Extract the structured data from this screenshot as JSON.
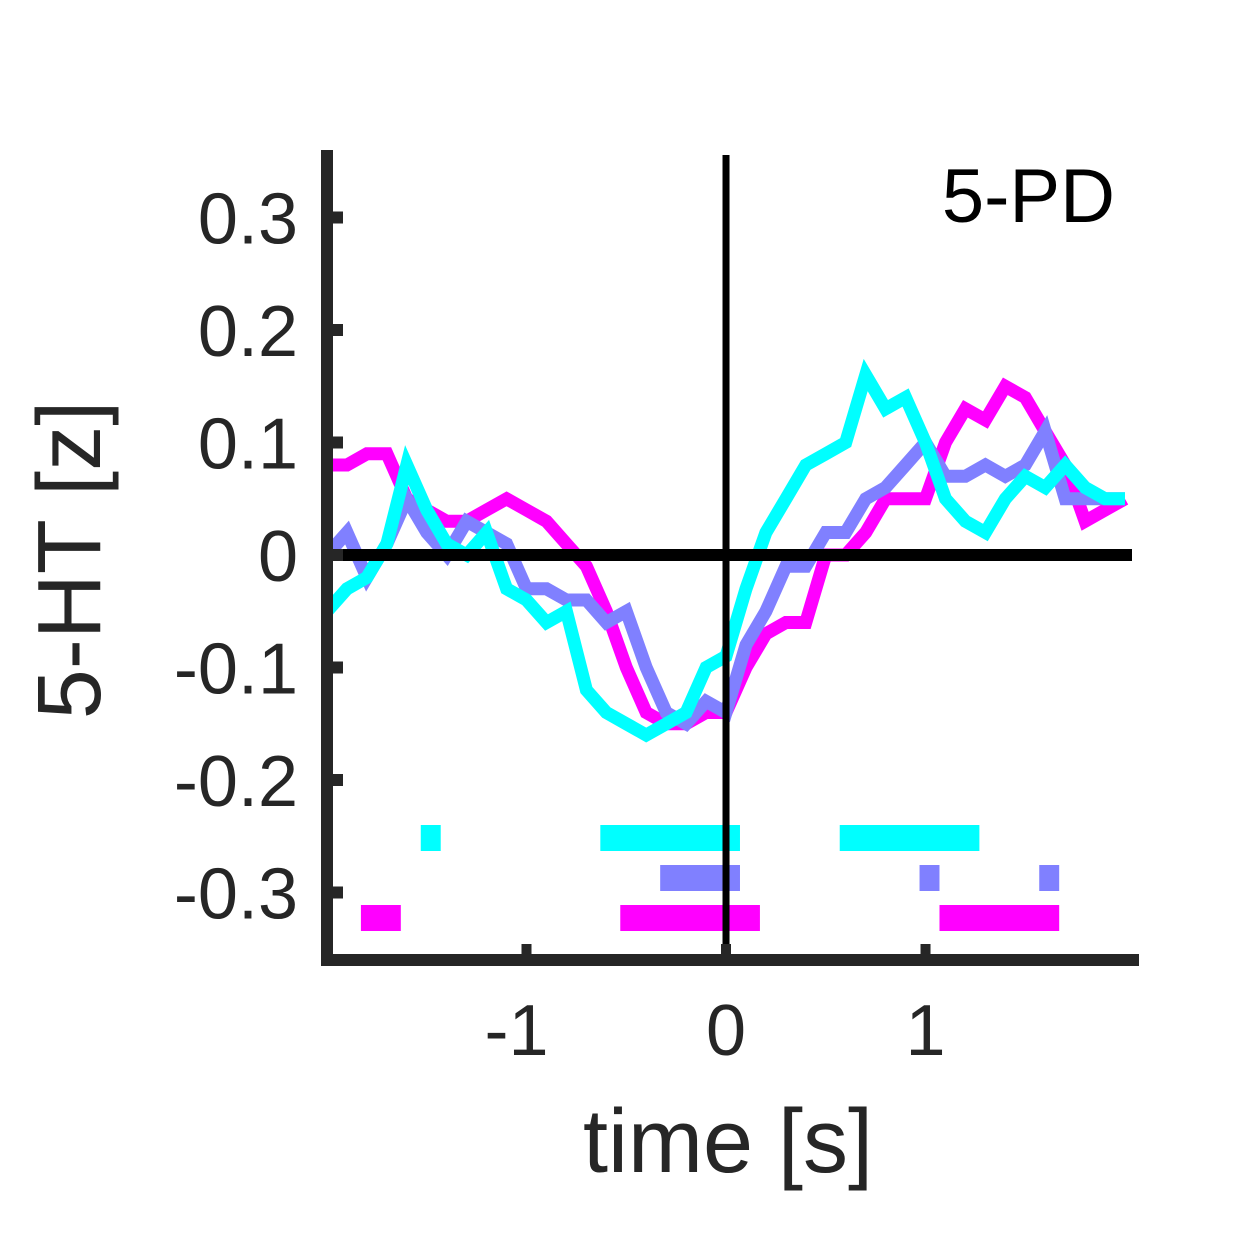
{
  "chart_data": {
    "type": "line",
    "title": "5-PD",
    "xlabel": "time [s]",
    "ylabel": "5-HT [z]",
    "xlim": [
      -2,
      2.05
    ],
    "ylim": [
      -0.36,
      0.36
    ],
    "xticks": [
      -1,
      0,
      1
    ],
    "xtick_labels": [
      "-1",
      "0",
      "1"
    ],
    "yticks": [
      0.3,
      0.2,
      0.1,
      0,
      -0.1,
      -0.2,
      -0.3
    ],
    "ytick_labels": [
      "0.3",
      "0.2",
      "0.1",
      "0",
      "-0.1",
      "-0.2",
      "-0.3"
    ],
    "grid": false,
    "reference_lines": {
      "x": 0,
      "y": 0
    },
    "series": [
      {
        "color": "#ff00ff",
        "x": [
          -2.0,
          -1.9,
          -1.8,
          -1.7,
          -1.6,
          -1.5,
          -1.4,
          -1.3,
          -1.2,
          -1.1,
          -1.0,
          -0.9,
          -0.8,
          -0.7,
          -0.6,
          -0.5,
          -0.4,
          -0.3,
          -0.2,
          -0.1,
          0.0,
          0.1,
          0.2,
          0.3,
          0.4,
          0.5,
          0.6,
          0.7,
          0.8,
          0.9,
          1.0,
          1.1,
          1.2,
          1.3,
          1.4,
          1.5,
          1.6,
          1.7,
          1.8,
          1.9,
          2.0
        ],
        "y": [
          0.08,
          0.08,
          0.09,
          0.09,
          0.05,
          0.04,
          0.03,
          0.03,
          0.04,
          0.05,
          0.04,
          0.03,
          0.01,
          -0.01,
          -0.05,
          -0.1,
          -0.14,
          -0.15,
          -0.15,
          -0.14,
          -0.14,
          -0.1,
          -0.07,
          -0.06,
          -0.06,
          0.0,
          0.0,
          0.02,
          0.05,
          0.05,
          0.05,
          0.1,
          0.13,
          0.12,
          0.15,
          0.14,
          0.11,
          0.08,
          0.03,
          0.04,
          0.05
        ]
      },
      {
        "color": "#8080ff",
        "x": [
          -2.0,
          -1.9,
          -1.8,
          -1.7,
          -1.6,
          -1.5,
          -1.4,
          -1.3,
          -1.2,
          -1.1,
          -1.0,
          -0.9,
          -0.8,
          -0.7,
          -0.6,
          -0.5,
          -0.4,
          -0.3,
          -0.2,
          -0.1,
          0.0,
          0.1,
          0.2,
          0.3,
          0.4,
          0.5,
          0.6,
          0.7,
          0.8,
          0.9,
          1.0,
          1.1,
          1.2,
          1.3,
          1.4,
          1.5,
          1.6,
          1.7,
          1.8,
          1.9,
          2.0
        ],
        "y": [
          0.0,
          0.02,
          -0.02,
          0.01,
          0.05,
          0.02,
          0.0,
          0.03,
          0.02,
          0.01,
          -0.03,
          -0.03,
          -0.04,
          -0.04,
          -0.06,
          -0.05,
          -0.1,
          -0.14,
          -0.15,
          -0.13,
          -0.14,
          -0.08,
          -0.05,
          -0.01,
          -0.01,
          0.02,
          0.02,
          0.05,
          0.06,
          0.08,
          0.1,
          0.07,
          0.07,
          0.08,
          0.07,
          0.08,
          0.11,
          0.05,
          0.05,
          0.05,
          0.05
        ]
      },
      {
        "color": "#00ffff",
        "x": [
          -2.0,
          -1.9,
          -1.8,
          -1.7,
          -1.6,
          -1.5,
          -1.4,
          -1.3,
          -1.2,
          -1.1,
          -1.0,
          -0.9,
          -0.8,
          -0.7,
          -0.6,
          -0.5,
          -0.4,
          -0.3,
          -0.2,
          -0.1,
          0.0,
          0.1,
          0.2,
          0.3,
          0.4,
          0.5,
          0.6,
          0.7,
          0.8,
          0.9,
          1.0,
          1.1,
          1.2,
          1.3,
          1.4,
          1.5,
          1.6,
          1.7,
          1.8,
          1.9,
          2.0
        ],
        "y": [
          -0.05,
          -0.03,
          -0.02,
          0.01,
          0.08,
          0.04,
          0.01,
          0.0,
          0.02,
          -0.03,
          -0.04,
          -0.06,
          -0.05,
          -0.12,
          -0.14,
          -0.15,
          -0.16,
          -0.15,
          -0.14,
          -0.1,
          -0.09,
          -0.03,
          0.02,
          0.05,
          0.08,
          0.09,
          0.1,
          0.16,
          0.13,
          0.14,
          0.1,
          0.05,
          0.03,
          0.02,
          0.05,
          0.07,
          0.06,
          0.08,
          0.06,
          0.05,
          0.05
        ]
      }
    ],
    "significance_bars": [
      {
        "color": "#00ffff",
        "segments": [
          [
            -1.53,
            -1.43
          ],
          [
            -0.63,
            0.07
          ],
          [
            0.57,
            1.27
          ]
        ]
      },
      {
        "color": "#8080ff",
        "segments": [
          [
            -0.33,
            0.07
          ],
          [
            0.97,
            1.07
          ],
          [
            1.57,
            1.67
          ]
        ]
      },
      {
        "color": "#ff00ff",
        "segments": [
          [
            -1.83,
            -1.63
          ],
          [
            -0.53,
            0.17
          ],
          [
            1.07,
            1.67
          ]
        ]
      }
    ]
  }
}
